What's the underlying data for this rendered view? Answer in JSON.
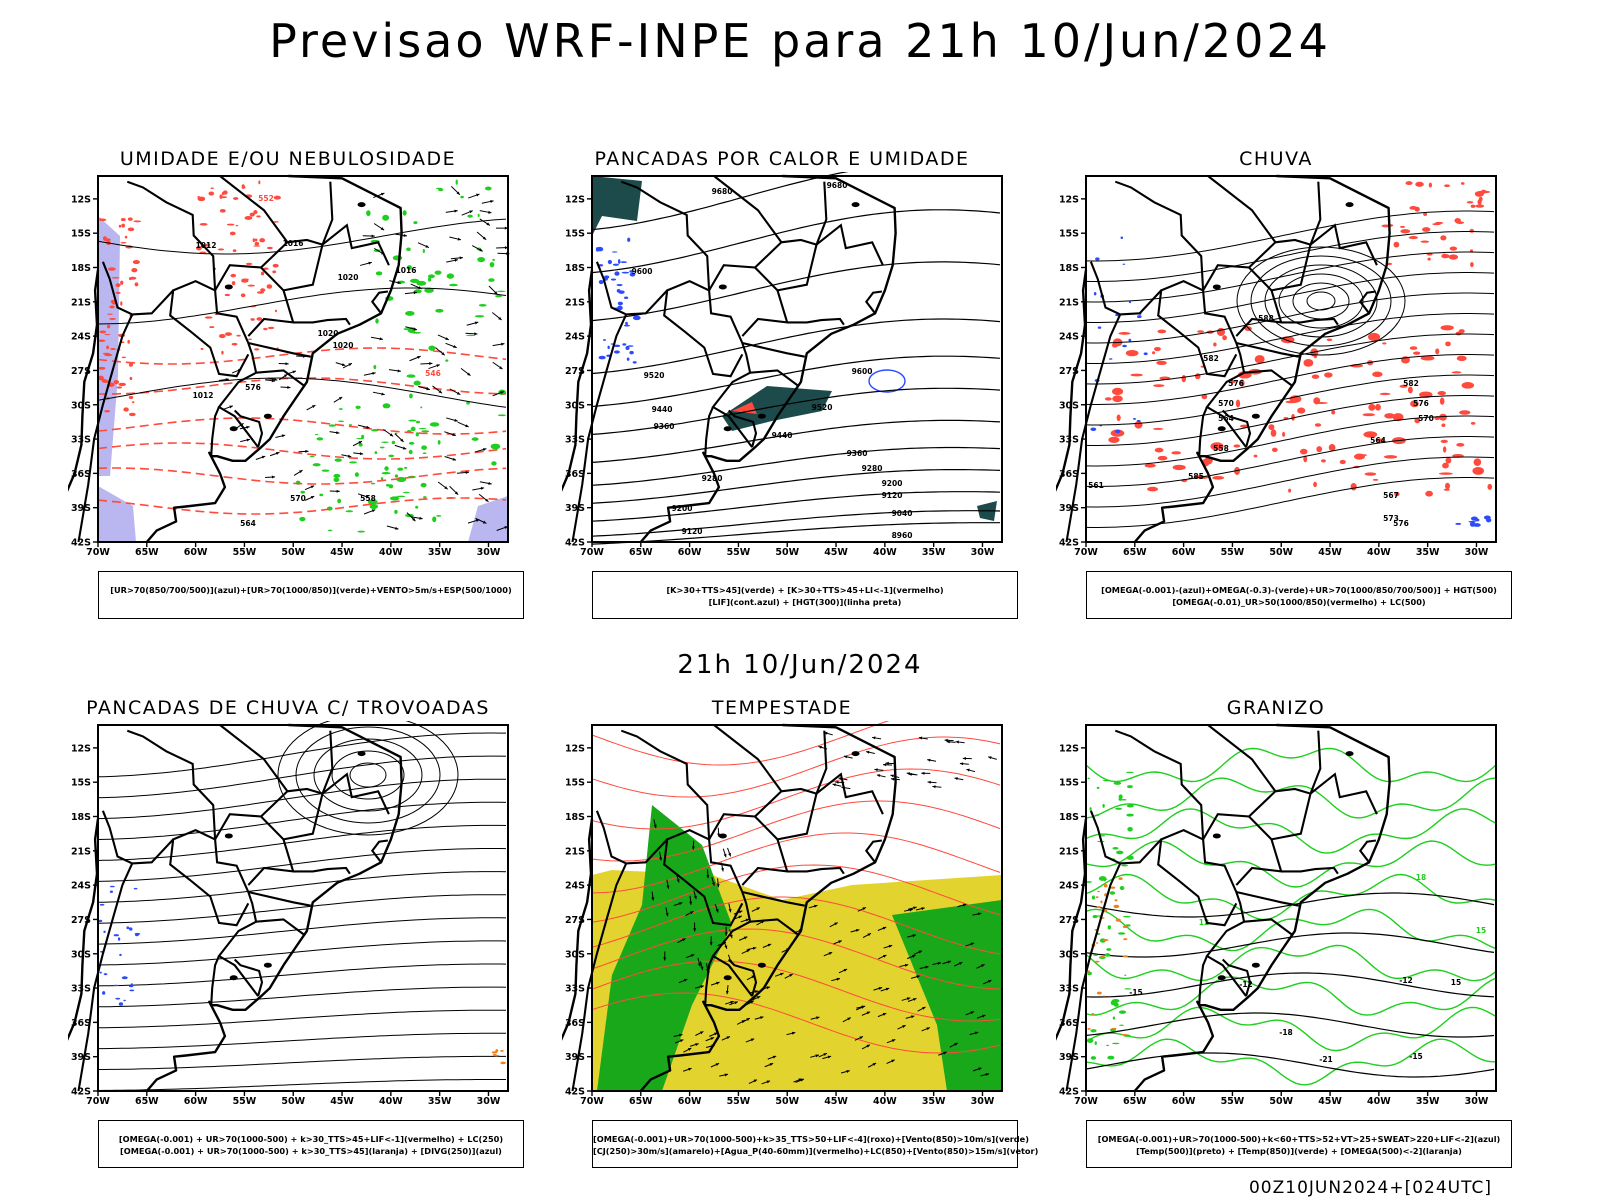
{
  "title": "Previsao WRF-INPE  para 21h 10/Jun/2024",
  "subtitle": "21h 10/Jun/2024",
  "footer": "00Z10JUN2024+[024UTC]",
  "axes": {
    "lat_labels": [
      "12S",
      "15S",
      "18S",
      "21S",
      "24S",
      "27S",
      "30S",
      "33S",
      "36S",
      "39S",
      "42S"
    ],
    "lon_labels": [
      "70W",
      "65W",
      "60W",
      "55W",
      "50W",
      "45W",
      "40W",
      "35W",
      "30W"
    ]
  },
  "colors": {
    "red": "#ff4a3d",
    "green": "#1ecf1e",
    "blue": "#2b4bff",
    "lavender": "#b9b6f0",
    "teal": "#1d4b4b",
    "yellow": "#e3d32e",
    "orange": "#f07f1e",
    "darkgreen": "#19a819"
  },
  "panels": [
    {
      "title": "UMIDADE E/OU NEBULOSIDADE",
      "legend": [
        "[UR>70(850/700/500)](azul)+[UR>70(1000/850)](verde)+VENTO>5m/s+ESP(500/1000)"
      ],
      "contour_labels": [
        "1012",
        "1016",
        "1020",
        "1020",
        "1020",
        "1012",
        "1016",
        "576",
        "570",
        "564",
        "558",
        "552",
        "546"
      ]
    },
    {
      "title": "PANCADAS POR CALOR E UMIDADE",
      "legend": [
        "[K>30+TTS>45](verde) + [K>30+TTS>45+LI<-1](vermelho)",
        "[LIF](cont.azul) + [HGT(300)](linha preta)"
      ],
      "contour_labels": [
        "9680",
        "9680",
        "9600",
        "9600",
        "9520",
        "9520",
        "9440",
        "9440",
        "9360",
        "9360",
        "9280",
        "9280",
        "9200",
        "9200",
        "9120",
        "9120",
        "9040",
        "8960"
      ]
    },
    {
      "title": "CHUVA",
      "legend": [
        "[OMEGA(-0.001)-(azul)+OMEGA(-0.3)-(verde)+UR>70(1000/850/700/500)] + HGT(500)",
        "[OMEGA(-0.01)_UR>50(1000/850)(vermelho) + LC(500)"
      ],
      "contour_labels": [
        "588",
        "582",
        "576",
        "570",
        "564",
        "558",
        "585",
        "582",
        "576",
        "570",
        "561",
        "564",
        "567",
        "573",
        "576"
      ]
    },
    {
      "title": "PANCADAS DE CHUVA C/ TROVOADAS",
      "legend": [
        "[OMEGA(-0.001) + UR>70(1000-500) + k>30_TTS>45+LIF<-1](vermelho) + LC(250)",
        "[OMEGA(-0.001) + UR>70(1000-500) + k>30_TTS>45](laranja) + [DIVG(250)](azul)"
      ],
      "contour_labels": []
    },
    {
      "title": "TEMPESTADE",
      "legend": [
        "[OMEGA(-0.001)+UR>70(1000-500)+k>35_TTS>50+LIF<-4](roxo)+[Vento(850)>10m/s](verde)",
        "[CJ(250)>30m/s](amarelo)+[Agua_P(40-60mm)](vermelho)+LC(850)+[Vento(850)>15m/s](vetor)"
      ],
      "contour_labels": []
    },
    {
      "title": "GRANIZO",
      "legend": [
        "[OMEGA(-0.001)+UR>70(1000-500)+k<60+TTS>52+VT>25+SWEAT>220+LIF<-2](azul)",
        "[Temp(500)](preto) + [Temp(850)](verde) + [OMEGA(500)<-2](laranja)"
      ],
      "contour_labels": [
        "-12",
        "-12",
        "-15",
        "-18",
        "-21",
        "-15",
        "12",
        "15",
        "18",
        "15"
      ]
    }
  ]
}
